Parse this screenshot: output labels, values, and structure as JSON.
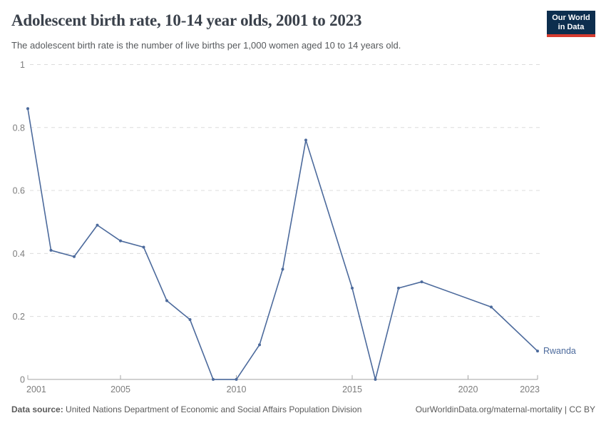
{
  "header": {
    "title": "Adolescent birth rate, 10-14 year olds, 2001 to 2023",
    "subtitle": "The adolescent birth rate is the number of live births per 1,000 women aged 10 to 14 years old."
  },
  "logo": {
    "line1": "Our World",
    "line2": "in Data",
    "bg_color": "#0d2e4e",
    "bar_color": "#d63b2f"
  },
  "footer": {
    "source_label": "Data source:",
    "source_text": "United Nations Department of Economic and Social Affairs Population Division",
    "link_text": "OurWorldinData.org/maternal-mortality | CC BY"
  },
  "chart_data": {
    "type": "line",
    "title": "Adolescent birth rate, 10-14 year olds, 2001 to 2023",
    "xlabel": "",
    "ylabel": "live births per 1,000 women aged 10 to 14",
    "xlim": [
      2001,
      2023
    ],
    "ylim": [
      0,
      1
    ],
    "x_ticks": [
      2001,
      2005,
      2010,
      2015,
      2020,
      2023
    ],
    "y_ticks": [
      0,
      0.2,
      0.4,
      0.6,
      0.8,
      1
    ],
    "grid": "horizontal-dashed",
    "legend_position": "end-of-line",
    "colors": {
      "line": "#4c6a9c",
      "axis": "#a5a5a5",
      "gridline": "#dcdcdc",
      "tick_label": "#7d7d7d"
    },
    "series": [
      {
        "name": "Rwanda",
        "color": "#4c6a9c",
        "points": [
          [
            2001,
            0.86
          ],
          [
            2002,
            0.41
          ],
          [
            2003,
            0.39
          ],
          [
            2004,
            0.49
          ],
          [
            2005,
            0.44
          ],
          [
            2006,
            0.42
          ],
          [
            2007,
            0.25
          ],
          [
            2008,
            0.19
          ],
          [
            2009,
            0
          ],
          [
            2010,
            0
          ],
          [
            2011,
            0.11
          ],
          [
            2012,
            0.35
          ],
          [
            2013,
            0.76
          ],
          [
            2015,
            0.29
          ],
          [
            2016,
            0
          ],
          [
            2017,
            0.29
          ],
          [
            2018,
            0.31
          ],
          [
            2021,
            0.23
          ],
          [
            2023,
            0.09
          ]
        ]
      }
    ]
  }
}
